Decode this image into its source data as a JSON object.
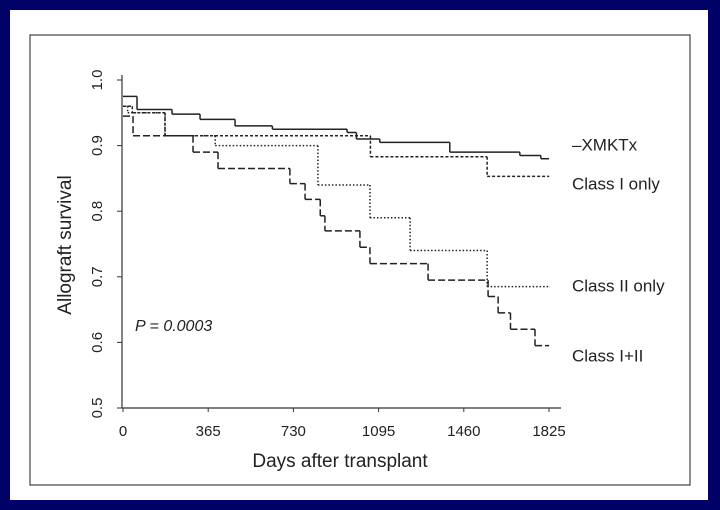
{
  "chart_data": {
    "type": "step",
    "xlabel": "Days after transplant",
    "ylabel": "Allograft survival",
    "annotation": "P = 0.0003",
    "xlim": [
      0,
      1825
    ],
    "ylim": [
      0.5,
      1.0
    ],
    "xticks": [
      0,
      365,
      730,
      1095,
      1460,
      1825
    ],
    "yticks": [
      0.5,
      0.6,
      0.7,
      0.8,
      0.9,
      {
        "value": 1,
        "label": "1.0"
      }
    ],
    "series": [
      {
        "name": "–XMKTx",
        "color": "#222222",
        "dash": "none",
        "x": [
          0,
          60,
          210,
          330,
          480,
          640,
          960,
          1000,
          1100,
          1400,
          1700,
          1790,
          1825
        ],
        "values": [
          0.975,
          0.955,
          0.948,
          0.94,
          0.93,
          0.925,
          0.92,
          0.91,
          0.905,
          0.89,
          0.885,
          0.88,
          0.88
        ]
      },
      {
        "name": "Class I only",
        "color": "#222222",
        "dash": "3,2",
        "x": [
          0,
          40,
          180,
          1060,
          1560,
          1825
        ],
        "values": [
          0.96,
          0.95,
          0.915,
          0.883,
          0.853,
          0.853
        ]
      },
      {
        "name": "Class II only",
        "color": "#222222",
        "dash": "1.5,2",
        "x": [
          0,
          20,
          180,
          395,
          835,
          1058,
          1230,
          1560,
          1825
        ],
        "values": [
          0.96,
          0.95,
          0.915,
          0.9,
          0.84,
          0.79,
          0.74,
          0.685,
          0.685
        ]
      },
      {
        "name": "Class I+II",
        "color": "#222222",
        "dash": "7,3",
        "x": [
          0,
          43,
          300,
          407,
          715,
          780,
          845,
          865,
          1015,
          1058,
          1307,
          1564,
          1607,
          1660,
          1765,
          1825
        ],
        "values": [
          0.945,
          0.915,
          0.89,
          0.865,
          0.842,
          0.818,
          0.793,
          0.77,
          0.745,
          0.72,
          0.695,
          0.67,
          0.645,
          0.62,
          0.595,
          0.595
        ]
      }
    ]
  }
}
